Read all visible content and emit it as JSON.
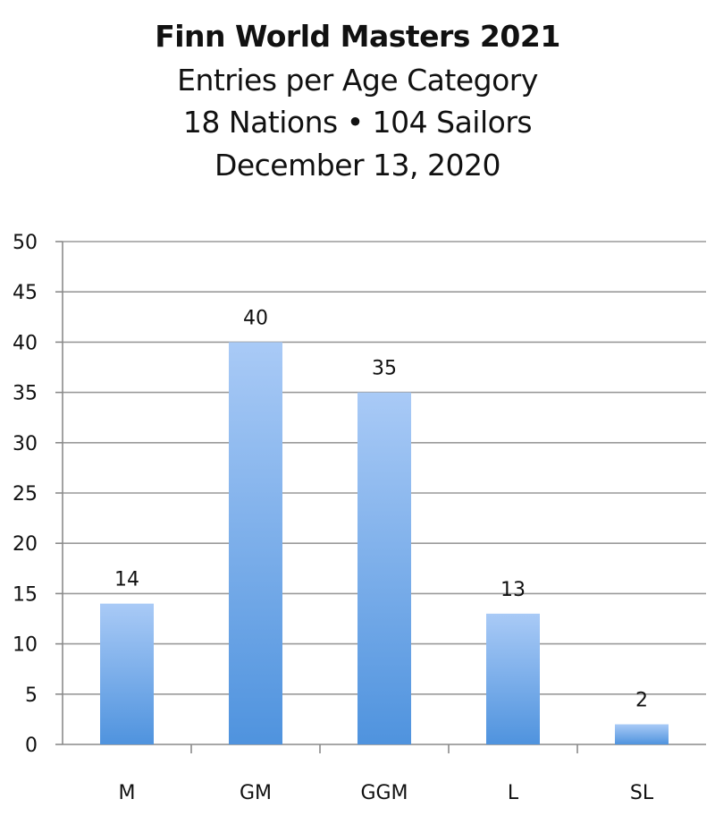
{
  "header": {
    "title": "Finn World Masters 2021",
    "subtitle": "Entries per Age Category",
    "stats": "18 Nations • 104 Sailors",
    "date": "December 13, 2020"
  },
  "colors": {
    "bar_top": "#a9caf6",
    "bar_bottom": "#4f93de",
    "grid": "#9a9a9a",
    "axis": "#8a8a8a"
  },
  "chart_data": {
    "type": "bar",
    "title": "Finn World Masters 2021",
    "subtitle": "Entries per Age Category",
    "categories": [
      "M",
      "GM",
      "GGM",
      "L",
      "SL"
    ],
    "values": [
      14,
      40,
      35,
      13,
      2
    ],
    "data_labels": [
      "14",
      "40",
      "35",
      "13",
      "2"
    ],
    "xlabel": "",
    "ylabel": "",
    "ylim": [
      0,
      50
    ],
    "yticks": [
      0,
      5,
      10,
      15,
      20,
      25,
      30,
      35,
      40,
      45,
      50
    ],
    "grid": true,
    "legend": "none"
  }
}
